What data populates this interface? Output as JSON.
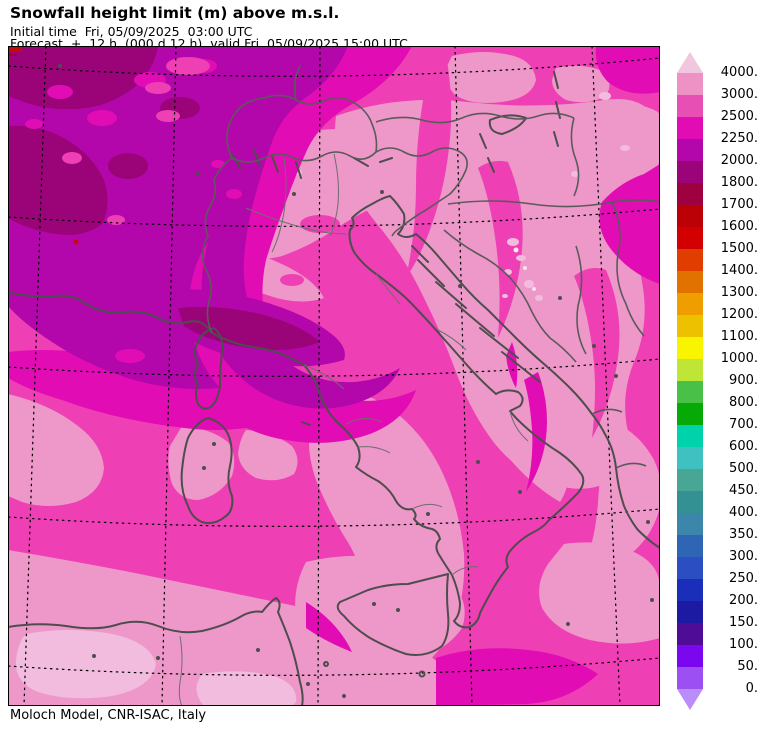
{
  "header": {
    "title": "Snowfall height limit (m) above m.s.l.",
    "initial_line": "Initial time  Fri, 05/09/2025  03:00 UTC",
    "forecast_line": "Forecast  +  12 h  (000 d 12 h)  valid Fri, 05/09/2025 15:00 UTC"
  },
  "footer": {
    "credit": "Moloch Model, CNR-ISAC, Italy"
  },
  "colorbar": {
    "labels": [
      "4000.",
      "3000.",
      "2500.",
      "2250.",
      "2000.",
      "1800.",
      "1700.",
      "1600.",
      "1500.",
      "1400.",
      "1300.",
      "1200.",
      "1100.",
      "1000.",
      "900.",
      "800.",
      "700.",
      "600.",
      "500.",
      "450.",
      "400.",
      "350.",
      "300.",
      "250.",
      "200.",
      "150.",
      "100.",
      "50.",
      "0."
    ],
    "band_colors": [
      "#ee92c6",
      "#e74fb4",
      "#e20cb4",
      "#b307ab",
      "#9b0378",
      "#9d0140",
      "#bb0006",
      "#d20000",
      "#e23d00",
      "#e17200",
      "#f09d00",
      "#edc100",
      "#f9f400",
      "#bfe637",
      "#49c149",
      "#06a906",
      "#00d3ab",
      "#3fc1c1",
      "#48a694",
      "#349193",
      "#3b86aa",
      "#2f65b5",
      "#2b4ec3",
      "#1b2eba",
      "#1c19a3",
      "#4f0c97",
      "#7a07ef",
      "#9c4ff3"
    ],
    "arrow_top_color": "#f1c6df",
    "arrow_bottom_color": "#bb8dfa"
  },
  "map": {
    "palette": {
      "base": "#ee3fb4",
      "deep": "#e20cb4",
      "light": "#ee98c9",
      "vlight": "#f2bcdf",
      "white": "#f9e2f1",
      "dark1": "#b307ab",
      "dark2": "#9b0378",
      "red": "#c40a0a",
      "darkred": "#9d0140",
      "coast": "#4d4d4d",
      "border": "#5a5a5a",
      "region": "#6e6e6e",
      "grid": "#000000"
    }
  },
  "chart_data": {
    "type": "heatmap",
    "title": "Snowfall height limit (m) above m.s.l.",
    "legend_values": [
      4000,
      3000,
      2500,
      2250,
      2000,
      1800,
      1700,
      1600,
      1500,
      1400,
      1300,
      1200,
      1100,
      1000,
      900,
      800,
      700,
      600,
      500,
      450,
      400,
      350,
      300,
      250,
      200,
      150,
      100,
      50,
      0
    ],
    "legend_position": "right",
    "values_shown_on_map_m": {
      "dominant_sea_and_land": "2500-3000",
      "broad_pink_areas": "3000-4000",
      "pale_spots_balkans_africa": "4000+",
      "northwest_cyclone_core": "1800-2250",
      "tiny_specks_top_left": "1500-1800"
    }
  }
}
